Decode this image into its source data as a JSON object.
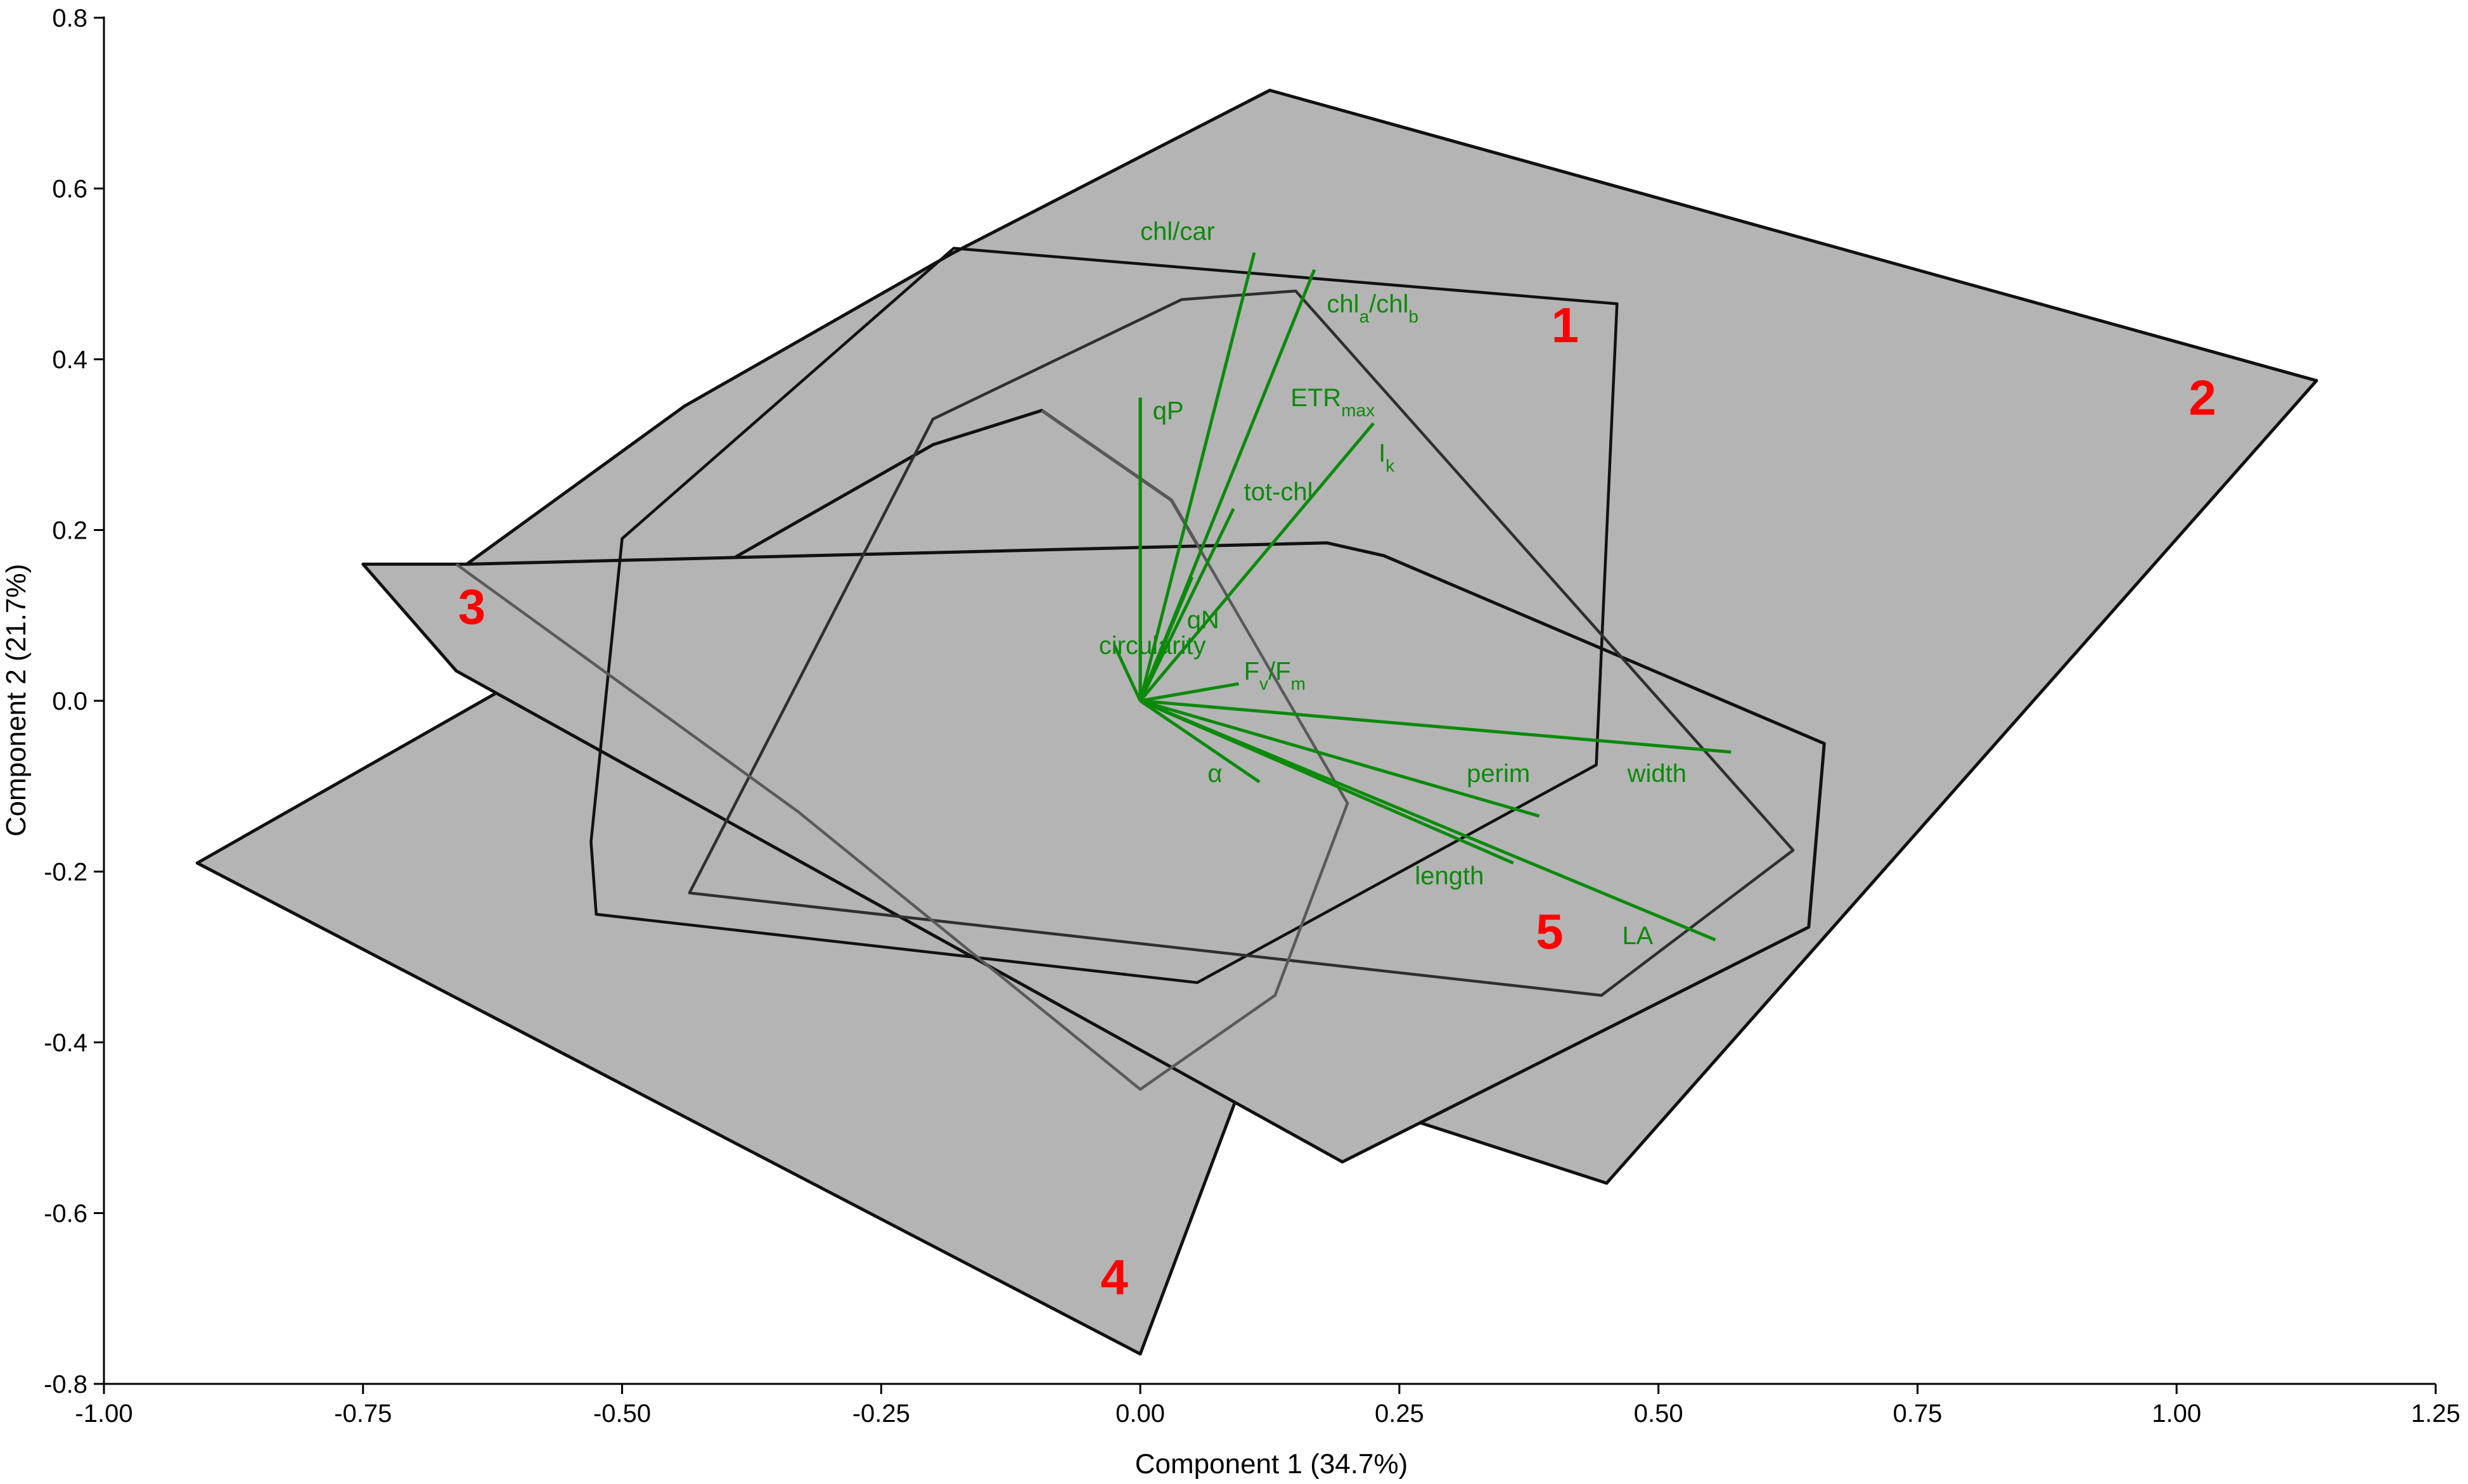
{
  "chart_data": {
    "type": "scatter",
    "subtype": "PCA biplot with convex hulls",
    "xlabel": "Component 1 (34.7%)",
    "ylabel": "Component 2 (21.7%)",
    "xlim": [
      -1.0,
      1.25
    ],
    "ylim": [
      -0.8,
      0.8
    ],
    "x_ticks": [
      -1.0,
      -0.75,
      -0.5,
      -0.25,
      0.0,
      0.25,
      0.5,
      0.75,
      1.0,
      1.25
    ],
    "x_tick_labels": [
      "-1.00",
      "-0.75",
      "-0.50",
      "-0.25",
      "0.00",
      "0.25",
      "0.50",
      "0.75",
      "1.00",
      "1.25"
    ],
    "y_ticks": [
      -0.8,
      -0.6,
      -0.4,
      -0.2,
      0.0,
      0.2,
      0.4,
      0.6,
      0.8
    ],
    "y_tick_labels": [
      "-0.8",
      "-0.6",
      "-0.4",
      "-0.2",
      "0.0",
      "0.2",
      "0.4",
      "0.6",
      "0.8"
    ],
    "grid": false,
    "colors": {
      "hull_fill": "#b4b4b4",
      "vector": "#0a8a0a",
      "group_label": "#ff0000",
      "axis": "#000000"
    },
    "hulls": [
      {
        "label": "2",
        "stroke": "#111111",
        "filled": true,
        "points": [
          [
            0.125,
            0.715
          ],
          [
            1.135,
            0.375
          ],
          [
            0.45,
            -0.565
          ],
          [
            -0.35,
            -0.25
          ],
          [
            -0.65,
            0.16
          ],
          [
            -0.44,
            0.345
          ],
          [
            -0.18,
            0.525
          ],
          [
            0.125,
            0.715
          ]
        ]
      },
      {
        "label": "4",
        "stroke": "#111111",
        "filled": true,
        "points": [
          [
            -0.095,
            0.34
          ],
          [
            -0.2,
            0.3
          ],
          [
            -0.91,
            -0.19
          ],
          [
            0.0,
            -0.765
          ],
          [
            0.2,
            -0.12
          ],
          [
            0.03,
            0.235
          ],
          [
            -0.095,
            0.34
          ]
        ]
      },
      {
        "label": "3",
        "stroke": "#111111",
        "filled": true,
        "points": [
          [
            -0.75,
            0.16
          ],
          [
            -0.65,
            0.16
          ],
          [
            0.18,
            0.185
          ],
          [
            0.235,
            0.17
          ],
          [
            0.66,
            -0.05
          ],
          [
            0.645,
            -0.265
          ],
          [
            0.195,
            -0.54
          ],
          [
            -0.66,
            0.035
          ],
          [
            -0.75,
            0.16
          ]
        ]
      },
      {
        "label": "1",
        "stroke": "#111111",
        "filled": false,
        "points": [
          [
            -0.18,
            0.53
          ],
          [
            0.46,
            0.465
          ],
          [
            0.44,
            -0.075
          ],
          [
            0.055,
            -0.33
          ],
          [
            -0.525,
            -0.25
          ],
          [
            -0.53,
            -0.165
          ],
          [
            -0.5,
            0.19
          ],
          [
            -0.18,
            0.53
          ]
        ]
      },
      {
        "label": "5",
        "stroke": "#2f2f2f",
        "filled": false,
        "points": [
          [
            0.04,
            0.47
          ],
          [
            0.15,
            0.48
          ],
          [
            0.63,
            -0.175
          ],
          [
            0.445,
            -0.345
          ],
          [
            -0.435,
            -0.225
          ],
          [
            -0.2,
            0.33
          ],
          [
            0.04,
            0.47
          ]
        ]
      },
      {
        "label": "4-outline",
        "stroke": "#5a5a5a",
        "filled": false,
        "points": [
          [
            -0.095,
            0.34
          ],
          [
            0.03,
            0.235
          ],
          [
            0.2,
            -0.12
          ],
          [
            0.13,
            -0.345
          ],
          [
            0.0,
            -0.455
          ],
          [
            -0.33,
            -0.13
          ],
          [
            -0.66,
            0.16
          ]
        ]
      }
    ],
    "vectors": [
      {
        "name": "chl/car",
        "label_html": "chl/car",
        "x": 0.11,
        "y": 0.525,
        "label_x": 0.0,
        "label_y": 0.54
      },
      {
        "name": "chla/chlb",
        "label_base": "chl",
        "label_parts": [
          "chl",
          "a",
          "/chl",
          "b"
        ],
        "x": 0.168,
        "y": 0.505,
        "label_x": 0.18,
        "label_y": 0.455
      },
      {
        "name": "ETRmax",
        "label_parts": [
          "ETR",
          "max"
        ],
        "x": 0.0,
        "y": 0.355,
        "label_x": 0.145,
        "label_y": 0.345
      },
      {
        "name": "Ik",
        "label_parts": [
          "I",
          "k"
        ],
        "x": 0.225,
        "y": 0.325,
        "label_x": 0.23,
        "label_y": 0.28
      },
      {
        "name": "qP",
        "label_html": "qP",
        "x": 0.0,
        "y": 0.355,
        "label_x": 0.012,
        "label_y": 0.33
      },
      {
        "name": "tot-chl",
        "label_html": "tot-chl",
        "x": 0.09,
        "y": 0.225,
        "label_x": 0.1,
        "label_y": 0.235
      },
      {
        "name": "qN",
        "label_html": "qN",
        "x": 0.05,
        "y": 0.145,
        "label_x": 0.045,
        "label_y": 0.085
      },
      {
        "name": "circularity",
        "label_html": "circularity",
        "x": -0.025,
        "y": 0.065,
        "label_x": -0.04,
        "label_y": 0.055
      },
      {
        "name": "Fv/Fm",
        "label_parts": [
          "F",
          "v",
          "/F",
          "m"
        ],
        "x": 0.095,
        "y": 0.02,
        "label_x": 0.1,
        "label_y": 0.025
      },
      {
        "name": "α",
        "label_html": "α",
        "x": 0.115,
        "y": -0.095,
        "label_x": 0.065,
        "label_y": -0.095
      },
      {
        "name": "perim",
        "label_html": "perim",
        "x": 0.385,
        "y": -0.135,
        "label_x": 0.315,
        "label_y": -0.095
      },
      {
        "name": "width",
        "label_html": "width",
        "x": 0.57,
        "y": -0.06,
        "label_x": 0.47,
        "label_y": -0.095
      },
      {
        "name": "length",
        "label_html": "length",
        "x": 0.36,
        "y": -0.19,
        "label_x": 0.265,
        "label_y": -0.215
      },
      {
        "name": "LA",
        "label_html": "LA",
        "x": 0.555,
        "y": -0.28,
        "label_x": 0.465,
        "label_y": -0.285
      }
    ],
    "group_labels": [
      {
        "text": "1",
        "x": 0.41,
        "y": 0.42
      },
      {
        "text": "2",
        "x": 1.025,
        "y": 0.335
      },
      {
        "text": "3",
        "x": -0.645,
        "y": 0.09
      },
      {
        "text": "4",
        "x": -0.025,
        "y": -0.695
      },
      {
        "text": "5",
        "x": 0.395,
        "y": -0.29
      }
    ]
  }
}
